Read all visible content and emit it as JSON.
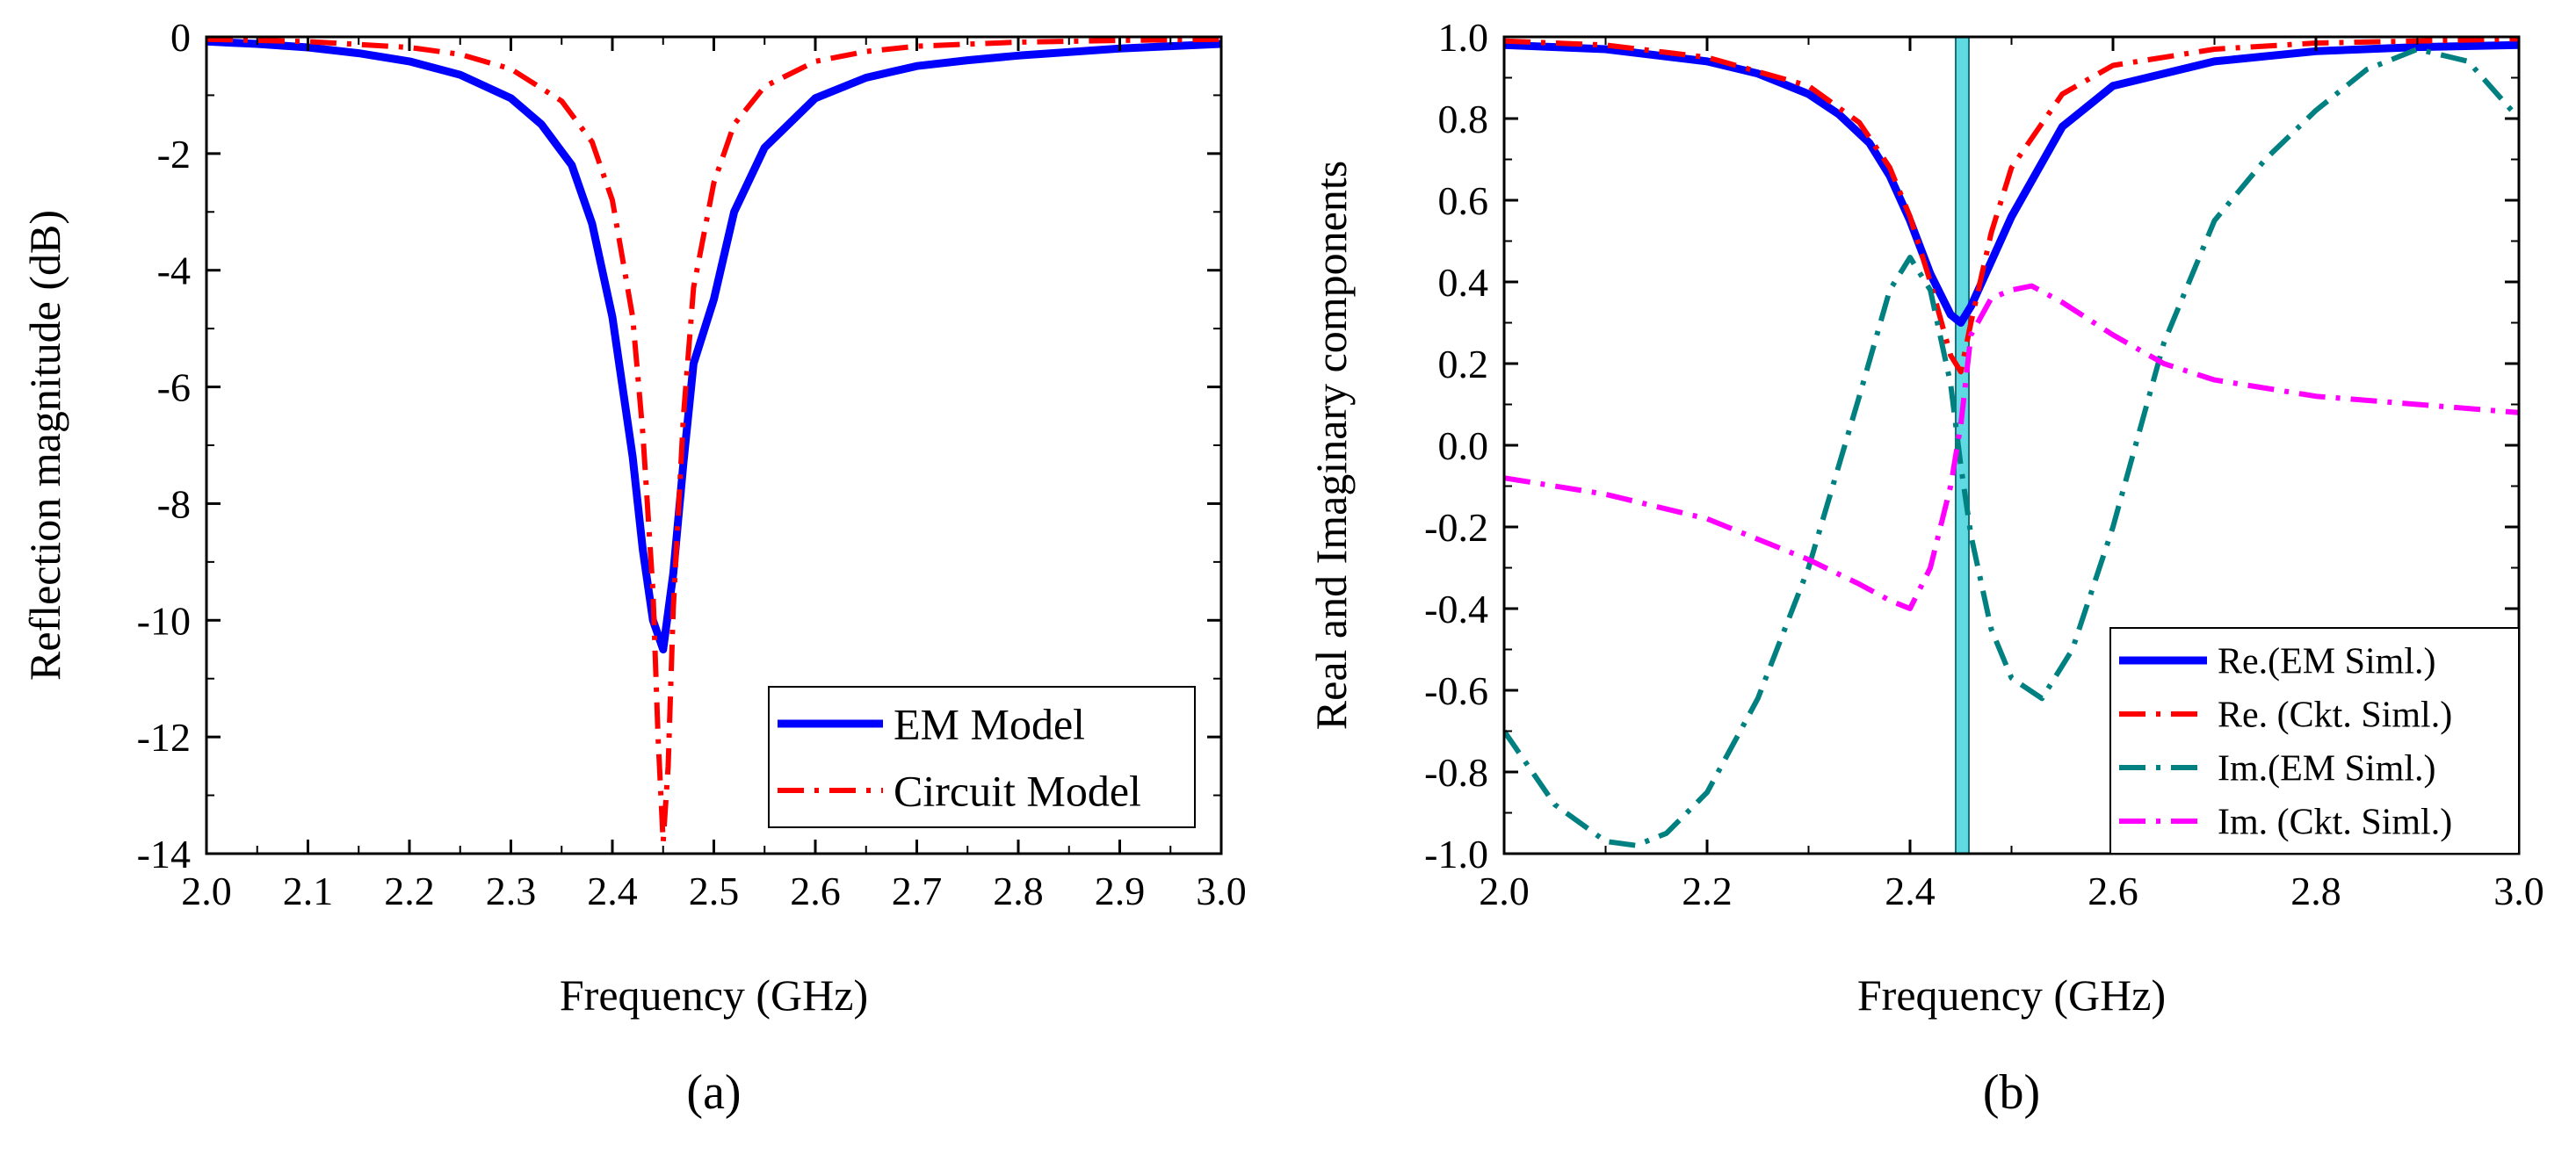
{
  "chart_data": [
    {
      "id": "a",
      "type": "line",
      "panel_label": "(a)",
      "title": "",
      "xlabel": "Frequency (GHz)",
      "ylabel": "Reflection magnitude (dB)",
      "xlim": [
        2.0,
        3.0
      ],
      "ylim": [
        -14,
        0
      ],
      "xticks": [
        2.0,
        2.1,
        2.2,
        2.3,
        2.4,
        2.5,
        2.6,
        2.7,
        2.8,
        2.9,
        3.0
      ],
      "yticks": [
        0,
        -2,
        -4,
        -6,
        -8,
        -10,
        -12,
        -14
      ],
      "xtick_labels": [
        "2.0",
        "2.1",
        "2.2",
        "2.3",
        "2.4",
        "2.5",
        "2.6",
        "2.7",
        "2.8",
        "2.9",
        "3.0"
      ],
      "ytick_labels": [
        "0",
        "-2",
        "-4",
        "-6",
        "-8",
        "-10",
        "-12",
        "-14"
      ],
      "legend_position": "bottom-right",
      "grid": false,
      "series": [
        {
          "name": "EM Model",
          "color": "#0000ff",
          "dash": "solid",
          "x": [
            2.0,
            2.05,
            2.1,
            2.15,
            2.2,
            2.25,
            2.3,
            2.33,
            2.36,
            2.38,
            2.4,
            2.42,
            2.43,
            2.44,
            2.45,
            2.46,
            2.47,
            2.48,
            2.5,
            2.52,
            2.55,
            2.6,
            2.65,
            2.7,
            2.75,
            2.8,
            2.9,
            3.0
          ],
          "values": [
            -0.08,
            -0.12,
            -0.18,
            -0.28,
            -0.42,
            -0.65,
            -1.05,
            -1.5,
            -2.2,
            -3.2,
            -4.8,
            -7.2,
            -8.8,
            -10.0,
            -10.5,
            -9.2,
            -7.3,
            -5.6,
            -4.5,
            -3.0,
            -1.9,
            -1.05,
            -0.7,
            -0.5,
            -0.4,
            -0.32,
            -0.2,
            -0.12
          ]
        },
        {
          "name": "Circuit Model",
          "color": "#ff0000",
          "dash": "dashdot",
          "x": [
            2.0,
            2.1,
            2.2,
            2.25,
            2.3,
            2.35,
            2.38,
            2.4,
            2.42,
            2.43,
            2.44,
            2.445,
            2.45,
            2.455,
            2.46,
            2.47,
            2.48,
            2.5,
            2.52,
            2.55,
            2.6,
            2.65,
            2.7,
            2.8,
            2.9,
            3.0
          ],
          "values": [
            -0.04,
            -0.08,
            -0.18,
            -0.3,
            -0.55,
            -1.1,
            -1.8,
            -2.8,
            -4.8,
            -6.8,
            -9.5,
            -12.0,
            -13.8,
            -12.5,
            -9.8,
            -6.5,
            -4.3,
            -2.5,
            -1.5,
            -0.85,
            -0.42,
            -0.25,
            -0.16,
            -0.09,
            -0.06,
            -0.04
          ]
        }
      ]
    },
    {
      "id": "b",
      "type": "line",
      "panel_label": "(b)",
      "title": "",
      "xlabel": "Frequency (GHz)",
      "ylabel": "Real and Imaginary components",
      "xlim": [
        2.0,
        3.0
      ],
      "ylim": [
        -1.0,
        1.0
      ],
      "xticks": [
        2.0,
        2.2,
        2.4,
        2.6,
        2.8,
        3.0
      ],
      "yticks": [
        1.0,
        0.8,
        0.6,
        0.4,
        0.2,
        0.0,
        -0.2,
        -0.4,
        -0.6,
        -0.8,
        -1.0
      ],
      "xtick_labels": [
        "2.0",
        "2.2",
        "2.4",
        "2.6",
        "2.8",
        "3.0"
      ],
      "ytick_labels": [
        "1.0",
        "0.8",
        "0.6",
        "0.4",
        "0.2",
        "0.0",
        "-0.2",
        "-0.4",
        "-0.6",
        "-0.8",
        "-1.0"
      ],
      "legend_position": "bottom-right",
      "grid": false,
      "highlight_band": {
        "x_range": [
          2.445,
          2.458
        ],
        "color": "#5fd9e2"
      },
      "series": [
        {
          "name": "Re.(EM Siml.)",
          "color": "#0000ff",
          "dash": "solid",
          "x": [
            2.0,
            2.1,
            2.2,
            2.25,
            2.3,
            2.33,
            2.36,
            2.38,
            2.4,
            2.42,
            2.44,
            2.45,
            2.46,
            2.48,
            2.5,
            2.55,
            2.6,
            2.7,
            2.8,
            2.9,
            3.0
          ],
          "values": [
            0.98,
            0.97,
            0.94,
            0.91,
            0.86,
            0.81,
            0.74,
            0.66,
            0.55,
            0.42,
            0.32,
            0.3,
            0.34,
            0.45,
            0.56,
            0.78,
            0.88,
            0.94,
            0.965,
            0.975,
            0.98
          ]
        },
        {
          "name": "Re. (Ckt. Siml.)",
          "color": "#ff0000",
          "dash": "dashdot",
          "x": [
            2.0,
            2.1,
            2.2,
            2.3,
            2.35,
            2.38,
            2.4,
            2.42,
            2.44,
            2.45,
            2.46,
            2.48,
            2.5,
            2.55,
            2.6,
            2.7,
            2.8,
            2.9,
            3.0
          ],
          "values": [
            0.99,
            0.98,
            0.95,
            0.88,
            0.79,
            0.68,
            0.56,
            0.4,
            0.22,
            0.18,
            0.3,
            0.52,
            0.68,
            0.86,
            0.93,
            0.97,
            0.985,
            0.99,
            0.995
          ]
        },
        {
          "name": "Im.(EM Siml.)",
          "color": "#008080",
          "dash": "dashdot",
          "x": [
            2.0,
            2.05,
            2.1,
            2.13,
            2.16,
            2.2,
            2.25,
            2.3,
            2.35,
            2.38,
            2.4,
            2.42,
            2.44,
            2.45,
            2.46,
            2.48,
            2.5,
            2.53,
            2.56,
            2.6,
            2.65,
            2.7,
            2.75,
            2.8,
            2.85,
            2.9,
            2.95,
            3.0
          ],
          "values": [
            -0.7,
            -0.88,
            -0.97,
            -0.98,
            -0.95,
            -0.85,
            -0.62,
            -0.3,
            0.12,
            0.38,
            0.46,
            0.38,
            0.15,
            -0.05,
            -0.22,
            -0.45,
            -0.57,
            -0.62,
            -0.5,
            -0.2,
            0.25,
            0.55,
            0.7,
            0.82,
            0.92,
            0.97,
            0.94,
            0.8
          ]
        },
        {
          "name": "Im. (Ckt. Siml.)",
          "color": "#ff00ff",
          "dash": "dashdot",
          "x": [
            2.0,
            2.05,
            2.1,
            2.15,
            2.2,
            2.25,
            2.3,
            2.35,
            2.38,
            2.4,
            2.42,
            2.44,
            2.45,
            2.46,
            2.48,
            2.5,
            2.52,
            2.55,
            2.6,
            2.65,
            2.7,
            2.8,
            2.9,
            3.0
          ],
          "values": [
            -0.08,
            -0.1,
            -0.12,
            -0.15,
            -0.18,
            -0.23,
            -0.28,
            -0.34,
            -0.38,
            -0.4,
            -0.3,
            -0.1,
            0.05,
            0.27,
            0.36,
            0.38,
            0.39,
            0.35,
            0.27,
            0.2,
            0.16,
            0.12,
            0.1,
            0.08
          ]
        }
      ]
    }
  ]
}
